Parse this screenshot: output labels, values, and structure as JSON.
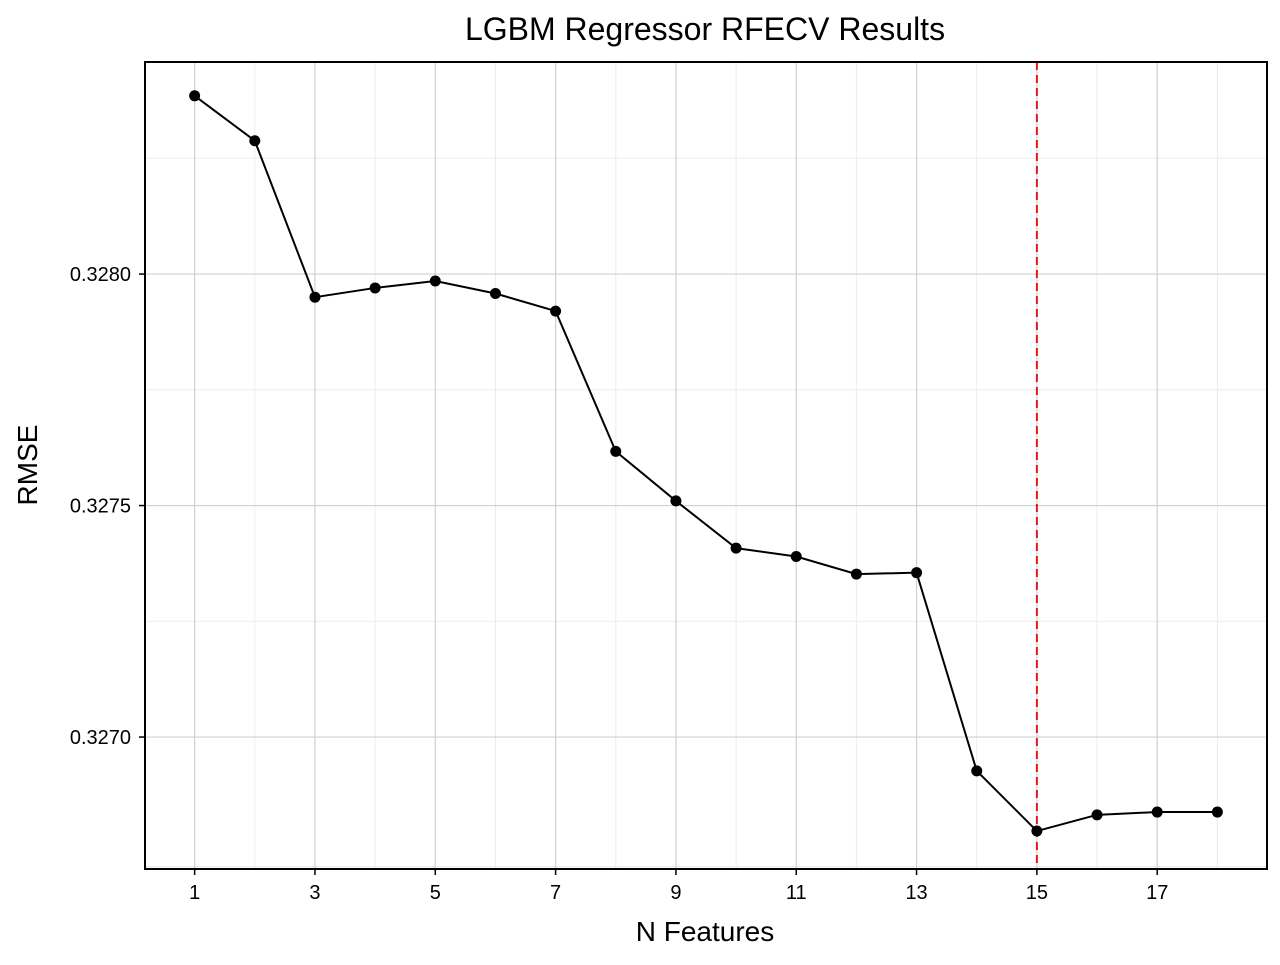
{
  "chart_data": {
    "type": "line",
    "title": "LGBM Regressor RFECV Results",
    "xlabel": "N Features",
    "ylabel": "RMSE",
    "xlim": [
      0.175,
      18.825
    ],
    "ylim": [
      0.326715,
      0.328458
    ],
    "x_ticks": [
      1,
      3,
      5,
      7,
      9,
      11,
      13,
      15,
      17
    ],
    "x_tick_labels": [
      "1",
      "3",
      "5",
      "7",
      "9",
      "11",
      "13",
      "15",
      "17"
    ],
    "y_ticks": [
      0.327,
      0.3275,
      0.328
    ],
    "y_tick_labels": [
      "0.3270",
      "0.3275",
      "0.3280"
    ],
    "x_minor_gridlines": [
      2,
      4,
      6,
      8,
      10,
      12,
      14,
      16,
      18
    ],
    "y_minor_gridlines": [
      0.32672,
      0.32725,
      0.32775,
      0.32825
    ],
    "grid": true,
    "series": [
      {
        "x": [
          1,
          2,
          3,
          4,
          5,
          6,
          7,
          8,
          9,
          10,
          11,
          12,
          13,
          14,
          15,
          16,
          17,
          18
        ],
        "values": [
          0.328385,
          0.328288,
          0.32795,
          0.32797,
          0.327985,
          0.327958,
          0.32792,
          0.327617,
          0.32751,
          0.327408,
          0.32739,
          0.327352,
          0.327355,
          0.326927,
          0.326797,
          0.326832,
          0.326838,
          0.326838
        ],
        "color": "#000000"
      }
    ],
    "reference_line": {
      "axis": "x",
      "value": 15,
      "color": "#e41a1c",
      "style": "dashed"
    },
    "colors": {
      "line": "#000000",
      "marker": "#000000",
      "reference": "#e41a1c",
      "major_grid": "#d0d0d0",
      "minor_grid": "#ececec"
    }
  }
}
